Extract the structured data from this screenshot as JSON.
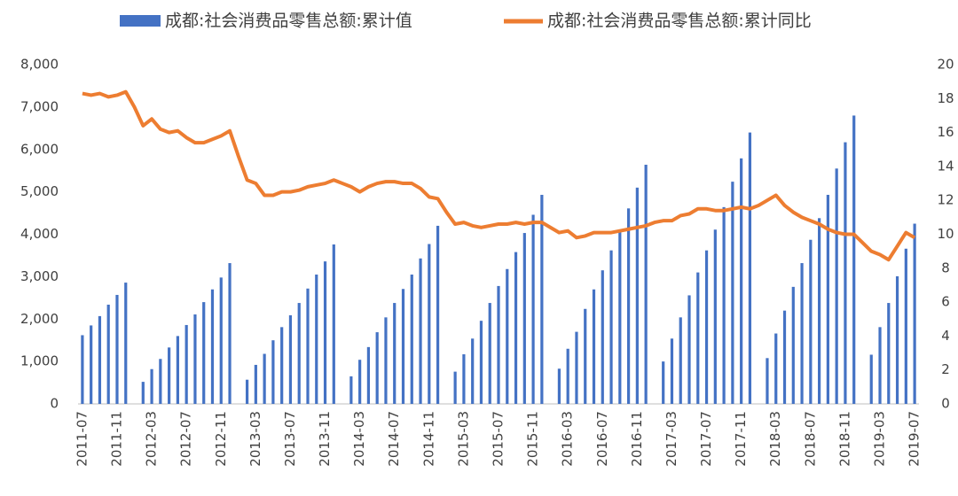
{
  "chart_data": {
    "type": "bar+line",
    "categories": [
      "2011-07",
      null,
      null,
      null,
      "2011-11",
      null,
      null,
      null,
      "2012-03",
      null,
      null,
      null,
      "2012-07",
      null,
      null,
      null,
      "2012-11",
      null,
      null,
      null,
      "2013-03",
      null,
      null,
      null,
      "2013-07",
      null,
      null,
      null,
      "2013-11",
      null,
      null,
      null,
      "2014-03",
      null,
      null,
      null,
      "2014-07",
      null,
      null,
      null,
      "2014-11",
      null,
      null,
      null,
      "2015-03",
      null,
      null,
      null,
      "2015-07",
      null,
      null,
      null,
      "2015-11",
      null,
      null,
      null,
      "2016-03",
      null,
      null,
      null,
      "2016-07",
      null,
      null,
      null,
      "2016-11",
      null,
      null,
      null,
      "2017-03",
      null,
      null,
      null,
      "2017-07",
      null,
      null,
      null,
      "2017-11",
      null,
      null,
      null,
      "2018-03",
      null,
      null,
      null,
      "2018-07",
      null,
      null,
      null,
      "2018-11",
      null,
      null,
      null,
      "2019-03",
      null,
      null,
      null,
      "2019-07"
    ],
    "series": [
      {
        "name": "成都:社会消费品零售总额:累计值",
        "type": "bar",
        "color": "#4472C4",
        "axis": "y",
        "values": [
          1620,
          1850,
          2070,
          2340,
          2570,
          2860,
          null,
          520,
          820,
          1060,
          1330,
          1600,
          1860,
          2110,
          2400,
          2700,
          2980,
          3320,
          null,
          570,
          920,
          1180,
          1500,
          1810,
          2090,
          2380,
          2720,
          3050,
          3360,
          3760,
          null,
          650,
          1040,
          1340,
          1690,
          2040,
          2380,
          2710,
          3050,
          3430,
          3770,
          4200,
          null,
          760,
          1170,
          1540,
          1960,
          2380,
          2780,
          3180,
          3580,
          4030,
          4460,
          4930,
          null,
          830,
          1300,
          1700,
          2240,
          2700,
          3150,
          3620,
          4110,
          4610,
          5100,
          5640,
          null,
          1000,
          1540,
          2040,
          2560,
          3100,
          3620,
          4110,
          4640,
          5240,
          5790,
          6400,
          null,
          1080,
          1660,
          2200,
          2760,
          3320,
          3870,
          4380,
          4930,
          5550,
          6170,
          6800,
          null,
          1160,
          1810,
          2380,
          3010,
          3660,
          4250
        ]
      },
      {
        "name": "成都:社会消费品零售总额:累计同比",
        "type": "line",
        "color": "#ED7D31",
        "axis": "y2",
        "values": [
          18.3,
          18.2,
          18.3,
          18.1,
          18.2,
          18.4,
          17.5,
          16.4,
          16.8,
          16.2,
          16.0,
          16.1,
          15.7,
          15.4,
          15.4,
          15.6,
          15.8,
          16.1,
          14.6,
          13.2,
          13.0,
          12.3,
          12.3,
          12.5,
          12.5,
          12.6,
          12.8,
          12.9,
          13.0,
          13.2,
          13.0,
          12.8,
          12.5,
          12.8,
          13.0,
          13.1,
          13.1,
          13.0,
          13.0,
          12.7,
          12.2,
          12.1,
          11.3,
          10.6,
          10.7,
          10.5,
          10.4,
          10.5,
          10.6,
          10.6,
          10.7,
          10.6,
          10.7,
          10.7,
          10.4,
          10.1,
          10.2,
          9.8,
          9.9,
          10.1,
          10.1,
          10.1,
          10.2,
          10.3,
          10.4,
          10.5,
          10.7,
          10.8,
          10.8,
          11.1,
          11.2,
          11.5,
          11.5,
          11.4,
          11.4,
          11.5,
          11.6,
          11.5,
          11.7,
          12.0,
          12.3,
          11.7,
          11.3,
          11.0,
          10.8,
          10.6,
          10.3,
          10.1,
          10.0,
          10.0,
          9.5,
          9.0,
          8.8,
          8.5,
          9.3,
          10.1,
          9.8
        ]
      }
    ],
    "ylim": [
      0,
      8000
    ],
    "yticks": [
      0,
      {
        "value": 1000,
        "label": "1,000"
      },
      {
        "value": 2000,
        "label": "2,000"
      },
      {
        "value": 3000,
        "label": "3,000"
      },
      {
        "value": 4000,
        "label": "4,000"
      },
      {
        "value": 5000,
        "label": "5,000"
      },
      {
        "value": 6000,
        "label": "6,000"
      },
      {
        "value": 7000,
        "label": "7,000"
      },
      {
        "value": 8000,
        "label": "8,000"
      }
    ],
    "y2lim": [
      0,
      20
    ],
    "y2ticks": [
      0,
      2,
      4,
      6,
      8,
      10,
      12,
      14,
      16,
      18,
      20
    ],
    "grid": false,
    "legend": "top"
  }
}
